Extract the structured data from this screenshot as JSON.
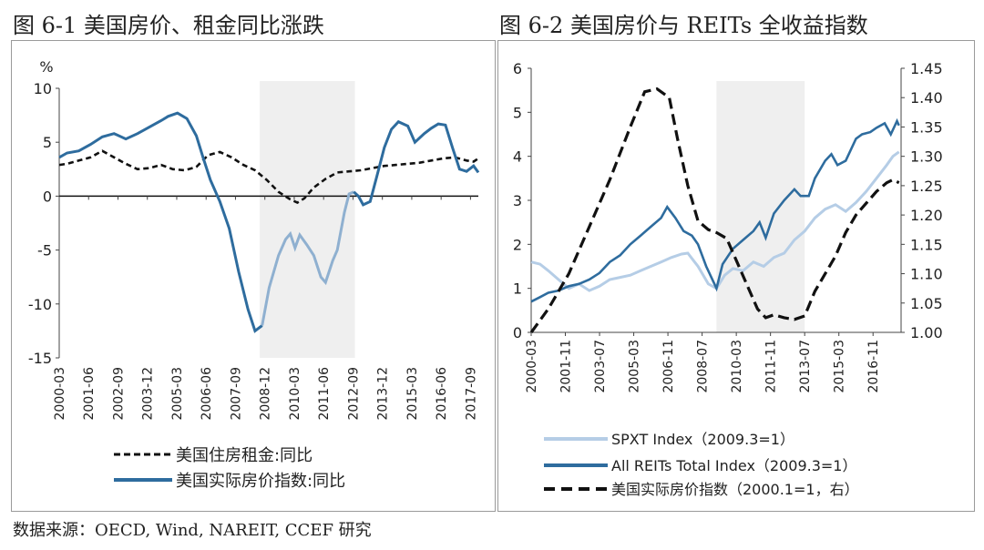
{
  "chart_data": [
    {
      "type": "line",
      "title": "图 6-1 美国房价、租金同比涨跌",
      "ylabel": "%",
      "ylim": [
        -15,
        10
      ],
      "yticks": [
        10,
        5,
        0,
        -5,
        -10,
        -15
      ],
      "ytick_labels": [
        "10",
        "5",
        "0",
        "-5",
        "-10",
        "-15"
      ],
      "xlim": [
        2000.167,
        2018.0
      ],
      "xtick_labels": [
        "2000-03",
        "2001-06",
        "2002-09",
        "2003-12",
        "2005-03",
        "2006-06",
        "2007-09",
        "2008-12",
        "2010-03",
        "2011-06",
        "2012-09",
        "2013-12",
        "2015-03",
        "2016-06",
        "2017-09"
      ],
      "xtick_positions": [
        2000.167,
        2001.417,
        2002.667,
        2003.917,
        2005.167,
        2006.417,
        2007.667,
        2008.917,
        2010.167,
        2011.417,
        2012.667,
        2013.917,
        2015.167,
        2016.417,
        2017.667
      ],
      "shade": [
        2008.7,
        2012.75
      ],
      "legend_position": "bottom",
      "series": [
        {
          "name": "美国住房租金:同比",
          "style": "dashed",
          "color": "#111111",
          "points": [
            [
              2000.17,
              2.9
            ],
            [
              2000.5,
              3.0
            ],
            [
              2001.0,
              3.3
            ],
            [
              2001.5,
              3.6
            ],
            [
              2002.0,
              4.2
            ],
            [
              2002.5,
              3.6
            ],
            [
              2003.0,
              3.0
            ],
            [
              2003.5,
              2.5
            ],
            [
              2004.0,
              2.6
            ],
            [
              2004.5,
              2.9
            ],
            [
              2005.0,
              2.5
            ],
            [
              2005.5,
              2.4
            ],
            [
              2006.0,
              2.7
            ],
            [
              2006.5,
              3.8
            ],
            [
              2007.0,
              4.1
            ],
            [
              2007.5,
              3.6
            ],
            [
              2008.0,
              2.9
            ],
            [
              2008.5,
              2.4
            ],
            [
              2009.0,
              1.5
            ],
            [
              2009.5,
              0.4
            ],
            [
              2010.0,
              -0.3
            ],
            [
              2010.3,
              -0.6
            ],
            [
              2010.6,
              -0.2
            ],
            [
              2011.0,
              0.8
            ],
            [
              2011.5,
              1.6
            ],
            [
              2012.0,
              2.2
            ],
            [
              2012.5,
              2.3
            ],
            [
              2013.0,
              2.4
            ],
            [
              2013.5,
              2.6
            ],
            [
              2014.0,
              2.8
            ],
            [
              2014.5,
              2.9
            ],
            [
              2015.0,
              3.0
            ],
            [
              2015.5,
              3.1
            ],
            [
              2016.0,
              3.3
            ],
            [
              2016.5,
              3.5
            ],
            [
              2017.0,
              3.6
            ],
            [
              2017.5,
              3.3
            ],
            [
              2017.8,
              3.2
            ],
            [
              2018.0,
              3.5
            ]
          ]
        },
        {
          "name": "美国实际房价指数:同比",
          "style": "solid",
          "color": "#2e6c9e",
          "shade_color": "#8fb0d0",
          "points": [
            [
              2000.17,
              3.6
            ],
            [
              2000.5,
              4.0
            ],
            [
              2001.0,
              4.2
            ],
            [
              2001.5,
              4.8
            ],
            [
              2002.0,
              5.5
            ],
            [
              2002.5,
              5.8
            ],
            [
              2003.0,
              5.3
            ],
            [
              2003.5,
              5.8
            ],
            [
              2004.0,
              6.4
            ],
            [
              2004.5,
              7.0
            ],
            [
              2004.8,
              7.4
            ],
            [
              2005.2,
              7.7
            ],
            [
              2005.6,
              7.2
            ],
            [
              2006.0,
              5.6
            ],
            [
              2006.3,
              3.5
            ],
            [
              2006.6,
              1.5
            ],
            [
              2007.0,
              -0.5
            ],
            [
              2007.4,
              -3.0
            ],
            [
              2007.8,
              -7.0
            ],
            [
              2008.2,
              -10.5
            ],
            [
              2008.5,
              -12.5
            ],
            [
              2008.8,
              -12.0
            ],
            [
              2009.1,
              -8.5
            ],
            [
              2009.5,
              -5.5
            ],
            [
              2009.8,
              -4.0
            ],
            [
              2010.0,
              -3.5
            ],
            [
              2010.2,
              -4.8
            ],
            [
              2010.4,
              -3.6
            ],
            [
              2010.7,
              -4.5
            ],
            [
              2011.0,
              -5.5
            ],
            [
              2011.3,
              -7.5
            ],
            [
              2011.5,
              -8.0
            ],
            [
              2011.8,
              -6.0
            ],
            [
              2012.0,
              -5.0
            ],
            [
              2012.3,
              -1.5
            ],
            [
              2012.5,
              0.2
            ],
            [
              2012.7,
              0.4
            ],
            [
              2012.9,
              0.0
            ],
            [
              2013.1,
              -0.8
            ],
            [
              2013.4,
              -0.5
            ],
            [
              2013.7,
              2.0
            ],
            [
              2014.0,
              4.5
            ],
            [
              2014.3,
              6.2
            ],
            [
              2014.6,
              6.9
            ],
            [
              2015.0,
              6.5
            ],
            [
              2015.3,
              5.0
            ],
            [
              2015.7,
              5.8
            ],
            [
              2016.0,
              6.3
            ],
            [
              2016.3,
              6.7
            ],
            [
              2016.6,
              6.6
            ],
            [
              2016.9,
              4.5
            ],
            [
              2017.2,
              2.5
            ],
            [
              2017.5,
              2.3
            ],
            [
              2017.8,
              2.8
            ],
            [
              2018.0,
              2.2
            ]
          ]
        }
      ]
    },
    {
      "type": "line",
      "title": "图 6-2 美国房价与 REITs 全收益指数",
      "ylim": [
        0,
        6
      ],
      "yticks": [
        0,
        1,
        2,
        3,
        4,
        5,
        6
      ],
      "ytick_labels": [
        "0",
        "1",
        "2",
        "3",
        "4",
        "5",
        "6"
      ],
      "y2lim": [
        1.0,
        1.45
      ],
      "y2ticks": [
        1.0,
        1.05,
        1.1,
        1.15,
        1.2,
        1.25,
        1.3,
        1.35,
        1.4,
        1.45
      ],
      "y2tick_labels": [
        "1.00",
        "1.05",
        "1.10",
        "1.15",
        "1.20",
        "1.25",
        "1.30",
        "1.35",
        "1.40",
        "1.45"
      ],
      "xlim": [
        2000.167,
        2018.2
      ],
      "xtick_labels": [
        "2000-03",
        "2001-11",
        "2003-07",
        "2005-03",
        "2006-11",
        "2008-07",
        "2010-03",
        "2011-11",
        "2013-07",
        "2015-03",
        "2016-11"
      ],
      "xtick_positions": [
        2000.167,
        2001.833,
        2003.5,
        2005.167,
        2006.833,
        2008.5,
        2010.167,
        2011.833,
        2013.5,
        2015.167,
        2016.833
      ],
      "shade": [
        2009.2,
        2013.5
      ],
      "legend_position": "bottom",
      "series": [
        {
          "name": "SPXT Index（2009.3=1）",
          "style": "solid",
          "color": "#b5cde6",
          "axis": "left",
          "points": [
            [
              2000.17,
              1.6
            ],
            [
              2000.6,
              1.55
            ],
            [
              2001.0,
              1.4
            ],
            [
              2001.5,
              1.2
            ],
            [
              2002.0,
              1.0
            ],
            [
              2002.5,
              1.1
            ],
            [
              2003.0,
              0.95
            ],
            [
              2003.5,
              1.05
            ],
            [
              2004.0,
              1.2
            ],
            [
              2004.5,
              1.25
            ],
            [
              2005.0,
              1.3
            ],
            [
              2005.5,
              1.4
            ],
            [
              2006.0,
              1.5
            ],
            [
              2006.5,
              1.6
            ],
            [
              2007.0,
              1.7
            ],
            [
              2007.5,
              1.78
            ],
            [
              2007.8,
              1.8
            ],
            [
              2008.3,
              1.5
            ],
            [
              2008.8,
              1.1
            ],
            [
              2009.2,
              1.0
            ],
            [
              2009.6,
              1.3
            ],
            [
              2010.0,
              1.45
            ],
            [
              2010.5,
              1.4
            ],
            [
              2011.0,
              1.6
            ],
            [
              2011.5,
              1.5
            ],
            [
              2012.0,
              1.7
            ],
            [
              2012.5,
              1.8
            ],
            [
              2013.0,
              2.1
            ],
            [
              2013.5,
              2.3
            ],
            [
              2014.0,
              2.6
            ],
            [
              2014.5,
              2.8
            ],
            [
              2015.0,
              2.9
            ],
            [
              2015.5,
              2.75
            ],
            [
              2016.0,
              2.95
            ],
            [
              2016.5,
              3.2
            ],
            [
              2017.0,
              3.5
            ],
            [
              2017.5,
              3.8
            ],
            [
              2017.8,
              4.0
            ],
            [
              2018.1,
              4.1
            ]
          ]
        },
        {
          "name": "All REITs Total Index（2009.3=1）",
          "style": "solid",
          "color": "#2e6c9e",
          "axis": "left",
          "points": [
            [
              2000.17,
              0.7
            ],
            [
              2000.6,
              0.8
            ],
            [
              2001.0,
              0.9
            ],
            [
              2001.5,
              0.95
            ],
            [
              2002.0,
              1.05
            ],
            [
              2002.5,
              1.1
            ],
            [
              2003.0,
              1.2
            ],
            [
              2003.5,
              1.35
            ],
            [
              2004.0,
              1.6
            ],
            [
              2004.5,
              1.75
            ],
            [
              2005.0,
              2.0
            ],
            [
              2005.5,
              2.2
            ],
            [
              2006.0,
              2.4
            ],
            [
              2006.5,
              2.6
            ],
            [
              2006.8,
              2.85
            ],
            [
              2007.2,
              2.6
            ],
            [
              2007.6,
              2.3
            ],
            [
              2008.0,
              2.2
            ],
            [
              2008.3,
              2.0
            ],
            [
              2008.7,
              1.5
            ],
            [
              2009.2,
              1.0
            ],
            [
              2009.5,
              1.55
            ],
            [
              2010.0,
              1.9
            ],
            [
              2010.5,
              2.1
            ],
            [
              2011.0,
              2.3
            ],
            [
              2011.3,
              2.5
            ],
            [
              2011.6,
              2.15
            ],
            [
              2012.0,
              2.7
            ],
            [
              2012.5,
              3.0
            ],
            [
              2013.0,
              3.25
            ],
            [
              2013.3,
              3.1
            ],
            [
              2013.7,
              3.1
            ],
            [
              2014.0,
              3.5
            ],
            [
              2014.5,
              3.9
            ],
            [
              2014.8,
              4.05
            ],
            [
              2015.1,
              3.8
            ],
            [
              2015.5,
              3.9
            ],
            [
              2016.0,
              4.4
            ],
            [
              2016.3,
              4.5
            ],
            [
              2016.7,
              4.55
            ],
            [
              2017.0,
              4.65
            ],
            [
              2017.4,
              4.75
            ],
            [
              2017.7,
              4.5
            ],
            [
              2018.0,
              4.8
            ],
            [
              2018.1,
              4.7
            ]
          ]
        },
        {
          "name": "美国实际房价指数（2000.1=1，右）",
          "style": "dashed",
          "color": "#111111",
          "axis": "right",
          "points": [
            [
              2000.17,
              1.0
            ],
            [
              2001.0,
              1.04
            ],
            [
              2002.0,
              1.1
            ],
            [
              2003.0,
              1.18
            ],
            [
              2004.0,
              1.26
            ],
            [
              2005.0,
              1.35
            ],
            [
              2005.7,
              1.41
            ],
            [
              2006.3,
              1.415
            ],
            [
              2006.9,
              1.4
            ],
            [
              2007.3,
              1.33
            ],
            [
              2007.8,
              1.25
            ],
            [
              2008.3,
              1.19
            ],
            [
              2008.8,
              1.175
            ],
            [
              2009.2,
              1.17
            ],
            [
              2009.7,
              1.16
            ],
            [
              2010.2,
              1.12
            ],
            [
              2010.7,
              1.08
            ],
            [
              2011.2,
              1.04
            ],
            [
              2011.6,
              1.025
            ],
            [
              2012.0,
              1.03
            ],
            [
              2012.5,
              1.025
            ],
            [
              2013.0,
              1.022
            ],
            [
              2013.5,
              1.028
            ],
            [
              2014.0,
              1.07
            ],
            [
              2014.5,
              1.1
            ],
            [
              2015.0,
              1.13
            ],
            [
              2015.5,
              1.17
            ],
            [
              2016.0,
              1.2
            ],
            [
              2016.5,
              1.22
            ],
            [
              2017.0,
              1.24
            ],
            [
              2017.5,
              1.255
            ],
            [
              2017.8,
              1.26
            ],
            [
              2018.1,
              1.255
            ]
          ]
        }
      ]
    }
  ],
  "source": "数据来源：OECD, Wind, NAREIT, CCEF 研究"
}
